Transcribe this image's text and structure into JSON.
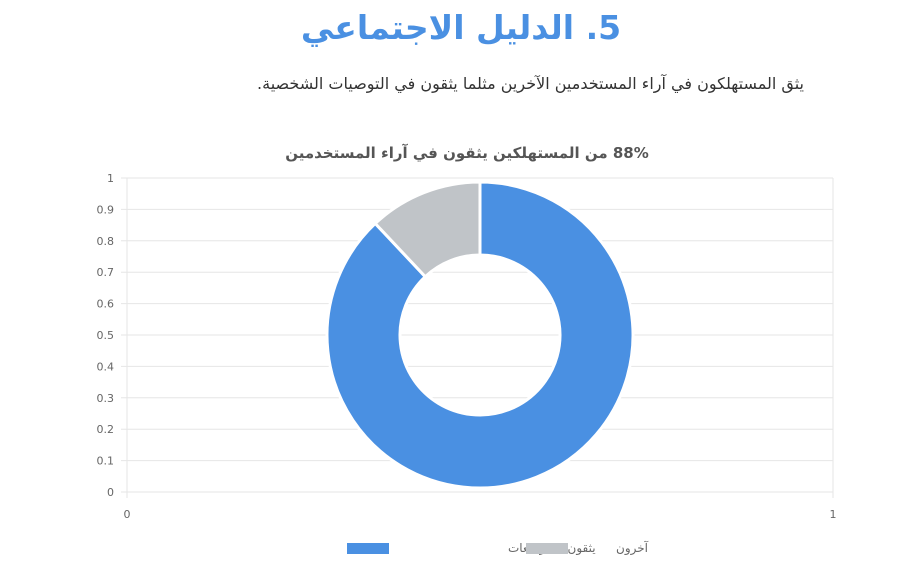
{
  "header": {
    "title": "5. الدليل الاجتماعي",
    "subtitle": "يثق المستهلكون في آراء المستخدمين الآخرين مثلما يثقون في التوصيات الشخصية."
  },
  "chart_data": {
    "type": "pie",
    "title": "88% من المستهلكين يثقون في آراء المستخدمين",
    "categories": [
      "يثقون بالمراجعات",
      "آخرون"
    ],
    "values": [
      88,
      12
    ],
    "colors": [
      "#4a90e2",
      "#c0c4c8"
    ],
    "y_ticks": [
      "0",
      "0.1",
      "0.2",
      "0.3",
      "0.4",
      "0.5",
      "0.6",
      "0.7",
      "0.8",
      "0.9",
      "1"
    ],
    "x_ticks": [
      "0",
      "1"
    ],
    "ylim": [
      0,
      1
    ],
    "xlim": [
      0,
      1
    ],
    "grid": true,
    "legend_position": "bottom"
  }
}
